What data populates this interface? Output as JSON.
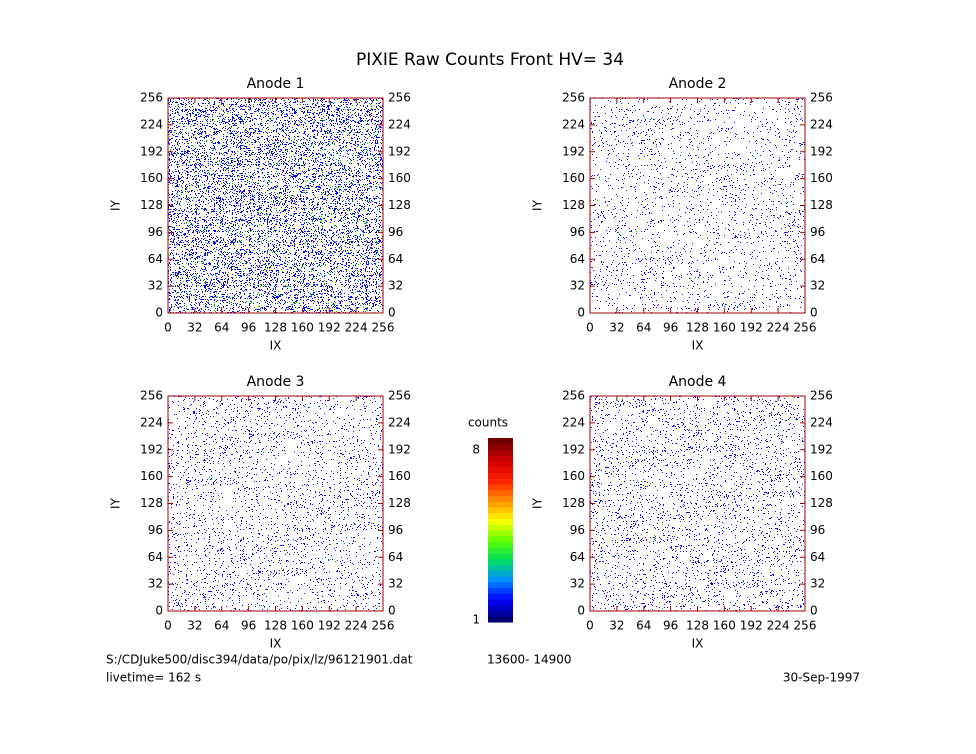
{
  "title": "PIXIE Raw Counts Front HV= 34",
  "chart_data": [
    {
      "type": "heatmap",
      "title": "Anode 1",
      "xlabel": "IX",
      "ylabel": "IY",
      "xlim": [
        0,
        256
      ],
      "ylim": [
        0,
        256
      ],
      "xticks": [
        0,
        32,
        64,
        96,
        128,
        160,
        192,
        224,
        256
      ],
      "yticks": [
        0,
        32,
        64,
        96,
        128,
        160,
        192,
        224,
        256
      ]
    },
    {
      "type": "heatmap",
      "title": "Anode 2",
      "xlabel": "IX",
      "ylabel": "IY",
      "xlim": [
        0,
        256
      ],
      "ylim": [
        0,
        256
      ],
      "xticks": [
        0,
        32,
        64,
        96,
        128,
        160,
        192,
        224,
        256
      ],
      "yticks": [
        0,
        32,
        64,
        96,
        128,
        160,
        192,
        224,
        256
      ]
    },
    {
      "type": "heatmap",
      "title": "Anode 3",
      "xlabel": "IX",
      "ylabel": "IY",
      "xlim": [
        0,
        256
      ],
      "ylim": [
        0,
        256
      ],
      "xticks": [
        0,
        32,
        64,
        96,
        128,
        160,
        192,
        224,
        256
      ],
      "yticks": [
        0,
        32,
        64,
        96,
        128,
        160,
        192,
        224,
        256
      ]
    },
    {
      "type": "heatmap",
      "title": "Anode 4",
      "xlabel": "IX",
      "ylabel": "IY",
      "xlim": [
        0,
        256
      ],
      "ylim": [
        0,
        256
      ],
      "xticks": [
        0,
        32,
        64,
        96,
        128,
        160,
        192,
        224,
        256
      ],
      "yticks": [
        0,
        32,
        64,
        96,
        128,
        160,
        192,
        224,
        256
      ]
    }
  ],
  "colorbar": {
    "label": "counts",
    "lim": [
      1,
      8
    ],
    "ticks": [
      1,
      8
    ]
  },
  "footer": {
    "file": "S:/CDJuke500/disc394/data/po/pix/lz/96121901.dat",
    "range": "13600- 14900",
    "livetime": "livetime= 162 s",
    "date": "30-Sep-1997"
  }
}
